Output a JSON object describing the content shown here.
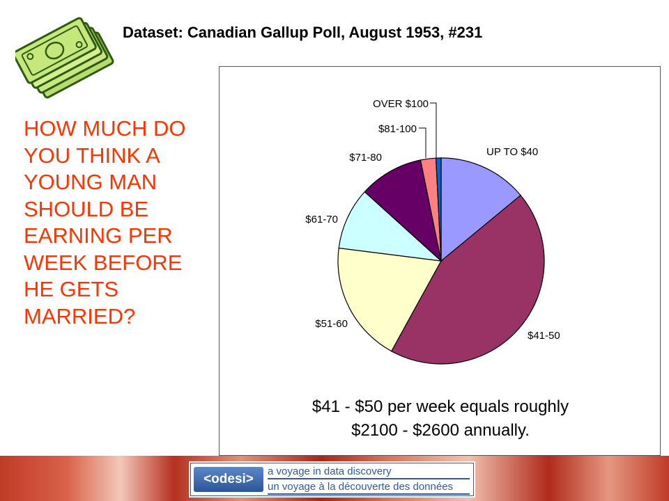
{
  "dataset_title": "Dataset: Canadian Gallup Poll, August 1953, #231",
  "question": "HOW MUCH DO YOU THINK A YOUNG MAN SHOULD BE EARNING PER WEEK BEFORE HE GETS MARRIED?",
  "icon": "money-stack-icon",
  "chart_data": {
    "type": "pie",
    "title": "",
    "categories": [
      "UP TO $40",
      "$41-50",
      "$51-60",
      "$61-70",
      "$71-80",
      "$81-100",
      "OVER $100"
    ],
    "values": [
      14,
      44,
      19,
      9.7,
      10.1,
      2.4,
      0.8
    ],
    "colors": [
      "#9999ff",
      "#993366",
      "#ffffcc",
      "#ccffff",
      "#660066",
      "#ff8080",
      "#0066cc"
    ],
    "legend": "none"
  },
  "chart_note": {
    "line1": "$41 - $50 per week equals roughly",
    "line2": "$2100 - $2600 annually."
  },
  "footer": {
    "logo": "<odesi>",
    "tagline_en": "a voyage in data discovery",
    "tagline_fr": "un voyage à la découverte des données"
  }
}
